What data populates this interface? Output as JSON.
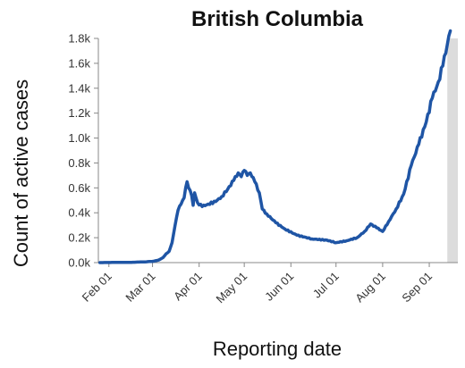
{
  "chart_data": {
    "type": "line",
    "title": "British Columbia",
    "xlabel": "Reporting date",
    "ylabel": "Count of active cases",
    "x_ticks": [
      "Feb 01",
      "Mar 01",
      "Apr 01",
      "May 01",
      "Jun 01",
      "Jul 01",
      "Aug 01",
      "Sep 01"
    ],
    "y_ticks": [
      "0.0k",
      "0.2k",
      "0.4k",
      "0.6k",
      "0.8k",
      "1.0k",
      "1.2k",
      "1.4k",
      "1.6k",
      "1.8k"
    ],
    "ylim": [
      0,
      1800
    ],
    "xlim": [
      "2020-01-25",
      "2020-09-20"
    ],
    "grid": false,
    "shaded_region": {
      "from": "2020-09-13",
      "to": "2020-09-20",
      "color": "#dcdcdc"
    },
    "series": [
      {
        "color": "#1f55a5",
        "points": [
          [
            "2020-01-26",
            0
          ],
          [
            "2020-02-01",
            1
          ],
          [
            "2020-02-15",
            2
          ],
          [
            "2020-02-25",
            6
          ],
          [
            "2020-03-01",
            10
          ],
          [
            "2020-03-05",
            20
          ],
          [
            "2020-03-08",
            40
          ],
          [
            "2020-03-10",
            70
          ],
          [
            "2020-03-12",
            90
          ],
          [
            "2020-03-14",
            160
          ],
          [
            "2020-03-16",
            300
          ],
          [
            "2020-03-18",
            420
          ],
          [
            "2020-03-20",
            470
          ],
          [
            "2020-03-22",
            520
          ],
          [
            "2020-03-23",
            600
          ],
          [
            "2020-03-24",
            650
          ],
          [
            "2020-03-25",
            600
          ],
          [
            "2020-03-27",
            540
          ],
          [
            "2020-03-28",
            460
          ],
          [
            "2020-03-29",
            560
          ],
          [
            "2020-03-31",
            480
          ],
          [
            "2020-04-03",
            450
          ],
          [
            "2020-04-07",
            470
          ],
          [
            "2020-04-12",
            490
          ],
          [
            "2020-04-16",
            530
          ],
          [
            "2020-04-20",
            590
          ],
          [
            "2020-04-24",
            660
          ],
          [
            "2020-04-27",
            720
          ],
          [
            "2020-04-29",
            690
          ],
          [
            "2020-05-01",
            740
          ],
          [
            "2020-05-03",
            700
          ],
          [
            "2020-05-05",
            720
          ],
          [
            "2020-05-08",
            650
          ],
          [
            "2020-05-11",
            560
          ],
          [
            "2020-05-13",
            430
          ],
          [
            "2020-05-16",
            390
          ],
          [
            "2020-05-22",
            320
          ],
          [
            "2020-05-28",
            270
          ],
          [
            "2020-06-05",
            220
          ],
          [
            "2020-06-15",
            190
          ],
          [
            "2020-06-25",
            180
          ],
          [
            "2020-07-01",
            160
          ],
          [
            "2020-07-08",
            175
          ],
          [
            "2020-07-15",
            200
          ],
          [
            "2020-07-20",
            250
          ],
          [
            "2020-07-24",
            310
          ],
          [
            "2020-07-28",
            280
          ],
          [
            "2020-08-01",
            250
          ],
          [
            "2020-08-05",
            330
          ],
          [
            "2020-08-10",
            430
          ],
          [
            "2020-08-15",
            550
          ],
          [
            "2020-08-20",
            780
          ],
          [
            "2020-08-25",
            950
          ],
          [
            "2020-08-30",
            1130
          ],
          [
            "2020-09-03",
            1320
          ],
          [
            "2020-09-07",
            1450
          ],
          [
            "2020-09-10",
            1580
          ],
          [
            "2020-09-13",
            1750
          ],
          [
            "2020-09-15",
            1860
          ]
        ]
      }
    ]
  }
}
